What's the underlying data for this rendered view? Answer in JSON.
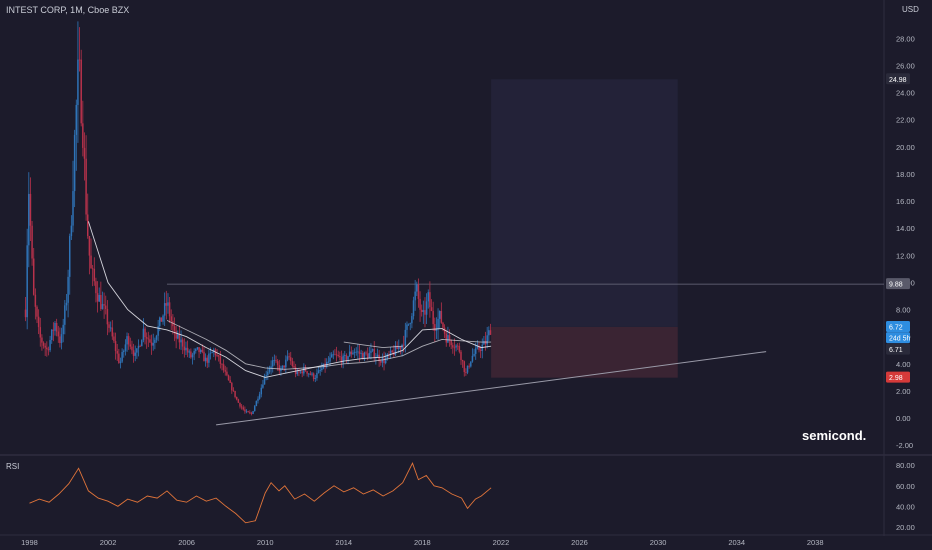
{
  "header": {
    "title": "INTEST CORP, 1M, Cboe BZX",
    "currency": "USD"
  },
  "watermark": "semicond.",
  "rsi_panel": {
    "label": "RSI"
  },
  "colors": {
    "background": "#1c1b2b",
    "up_candle": "#2f74b8",
    "down_candle": "#b8324b",
    "ma_line": "#e8e8ee",
    "rsi_line": "#e0743a",
    "trendline": "#9a9aa8",
    "projection_profit": "#232238",
    "projection_loss": "#3a2433",
    "tag_blue": "#2e8de0",
    "tag_red": "#d63a3a",
    "tag_gray": "#5a5a6a",
    "tag_dark": "#2a2a3a"
  },
  "chart_data": [
    {
      "type": "candlestick",
      "title": "INTEST CORP, 1M, Cboe BZX",
      "x_axis": {
        "type": "date",
        "range": [
          1996.5,
          2041.5
        ],
        "tick_labels": [
          "1998",
          "2002",
          "2006",
          "2010",
          "2014",
          "2018",
          "2022",
          "2026",
          "2030",
          "2034",
          "2038"
        ]
      },
      "y_axis": {
        "range": [
          -2.5,
          29.5
        ],
        "position": "right",
        "tick_labels": [
          "-2.00",
          "0.00",
          "2.00",
          "4.00",
          "6.00",
          "8.00",
          "10.00",
          "12.00",
          "14.00",
          "16.00",
          "18.00",
          "20.00",
          "22.00",
          "24.00",
          "26.00",
          "28.00"
        ]
      },
      "price_path": [
        {
          "x": 1997.8,
          "y": 8.0
        },
        {
          "x": 1997.95,
          "y": 17.5
        },
        {
          "x": 1998.2,
          "y": 9.0
        },
        {
          "x": 1998.5,
          "y": 6.0
        },
        {
          "x": 1998.9,
          "y": 5.0
        },
        {
          "x": 1999.3,
          "y": 7.0
        },
        {
          "x": 1999.6,
          "y": 5.5
        },
        {
          "x": 1999.9,
          "y": 9.0
        },
        {
          "x": 2000.1,
          "y": 14.0
        },
        {
          "x": 2000.3,
          "y": 20.5
        },
        {
          "x": 2000.5,
          "y": 26.0
        },
        {
          "x": 2000.7,
          "y": 22.0
        },
        {
          "x": 2000.9,
          "y": 15.0
        },
        {
          "x": 2001.1,
          "y": 11.0
        },
        {
          "x": 2001.5,
          "y": 9.0
        },
        {
          "x": 2001.9,
          "y": 7.5
        },
        {
          "x": 2002.2,
          "y": 6.0
        },
        {
          "x": 2002.6,
          "y": 4.0
        },
        {
          "x": 2003.0,
          "y": 6.0
        },
        {
          "x": 2003.4,
          "y": 4.5
        },
        {
          "x": 2003.8,
          "y": 6.5
        },
        {
          "x": 2004.2,
          "y": 5.5
        },
        {
          "x": 2004.6,
          "y": 6.8
        },
        {
          "x": 2005.0,
          "y": 8.5
        },
        {
          "x": 2005.4,
          "y": 6.0
        },
        {
          "x": 2005.8,
          "y": 5.5
        },
        {
          "x": 2006.2,
          "y": 4.5
        },
        {
          "x": 2006.6,
          "y": 5.0
        },
        {
          "x": 2007.0,
          "y": 4.2
        },
        {
          "x": 2007.4,
          "y": 5.0
        },
        {
          "x": 2007.8,
          "y": 3.8
        },
        {
          "x": 2008.2,
          "y": 2.5
        },
        {
          "x": 2008.6,
          "y": 1.2
        },
        {
          "x": 2009.0,
          "y": 0.4
        },
        {
          "x": 2009.3,
          "y": 0.3
        },
        {
          "x": 2009.7,
          "y": 1.8
        },
        {
          "x": 2010.0,
          "y": 3.2
        },
        {
          "x": 2010.4,
          "y": 4.2
        },
        {
          "x": 2010.8,
          "y": 3.5
        },
        {
          "x": 2011.2,
          "y": 4.5
        },
        {
          "x": 2011.6,
          "y": 3.2
        },
        {
          "x": 2012.0,
          "y": 3.6
        },
        {
          "x": 2012.5,
          "y": 3.0
        },
        {
          "x": 2013.0,
          "y": 3.8
        },
        {
          "x": 2013.5,
          "y": 4.6
        },
        {
          "x": 2014.0,
          "y": 4.3
        },
        {
          "x": 2014.5,
          "y": 5.0
        },
        {
          "x": 2015.0,
          "y": 4.6
        },
        {
          "x": 2015.5,
          "y": 4.8
        },
        {
          "x": 2016.0,
          "y": 4.2
        },
        {
          "x": 2016.5,
          "y": 4.8
        },
        {
          "x": 2017.0,
          "y": 5.5
        },
        {
          "x": 2017.4,
          "y": 7.5
        },
        {
          "x": 2017.7,
          "y": 9.5
        },
        {
          "x": 2018.0,
          "y": 7.2
        },
        {
          "x": 2018.3,
          "y": 8.8
        },
        {
          "x": 2018.6,
          "y": 6.8
        },
        {
          "x": 2018.9,
          "y": 7.5
        },
        {
          "x": 2019.2,
          "y": 6.0
        },
        {
          "x": 2019.6,
          "y": 5.5
        },
        {
          "x": 2019.9,
          "y": 5.0
        },
        {
          "x": 2020.2,
          "y": 3.2
        },
        {
          "x": 2020.5,
          "y": 4.5
        },
        {
          "x": 2020.8,
          "y": 5.0
        },
        {
          "x": 2021.2,
          "y": 5.5
        },
        {
          "x": 2021.5,
          "y": 6.72
        }
      ],
      "moving_averages": [
        {
          "name": "",
          "points": [
            {
              "x": 2001.0,
              "y": 14.5
            },
            {
              "x": 2002.0,
              "y": 10.0
            },
            {
              "x": 2003.0,
              "y": 8.0
            },
            {
              "x": 2004.0,
              "y": 6.8
            },
            {
              "x": 2005.0,
              "y": 6.5
            },
            {
              "x": 2006.0,
              "y": 6.0
            },
            {
              "x": 2007.0,
              "y": 5.2
            },
            {
              "x": 2008.0,
              "y": 4.5
            },
            {
              "x": 2009.0,
              "y": 3.5
            },
            {
              "x": 2010.0,
              "y": 3.0
            },
            {
              "x": 2011.0,
              "y": 3.3
            },
            {
              "x": 2012.0,
              "y": 3.6
            },
            {
              "x": 2013.0,
              "y": 3.9
            },
            {
              "x": 2014.0,
              "y": 4.2
            },
            {
              "x": 2015.0,
              "y": 4.4
            },
            {
              "x": 2016.0,
              "y": 4.5
            },
            {
              "x": 2017.0,
              "y": 5.0
            },
            {
              "x": 2018.0,
              "y": 6.5
            },
            {
              "x": 2019.0,
              "y": 6.6
            },
            {
              "x": 2020.0,
              "y": 5.8
            },
            {
              "x": 2021.0,
              "y": 5.2
            },
            {
              "x": 2021.5,
              "y": 5.3
            }
          ]
        },
        {
          "name": "",
          "points": [
            {
              "x": 2005.0,
              "y": 7.2
            },
            {
              "x": 2006.0,
              "y": 6.5
            },
            {
              "x": 2007.0,
              "y": 5.8
            },
            {
              "x": 2008.0,
              "y": 5.0
            },
            {
              "x": 2009.0,
              "y": 4.0
            },
            {
              "x": 2010.0,
              "y": 3.7
            },
            {
              "x": 2011.0,
              "y": 3.6
            },
            {
              "x": 2012.0,
              "y": 3.7
            },
            {
              "x": 2013.0,
              "y": 3.8
            },
            {
              "x": 2014.0,
              "y": 4.0
            },
            {
              "x": 2015.0,
              "y": 4.1
            },
            {
              "x": 2016.0,
              "y": 4.3
            },
            {
              "x": 2017.0,
              "y": 4.6
            },
            {
              "x": 2018.0,
              "y": 5.3
            },
            {
              "x": 2019.0,
              "y": 5.8
            },
            {
              "x": 2020.0,
              "y": 5.7
            },
            {
              "x": 2021.0,
              "y": 5.6
            },
            {
              "x": 2021.5,
              "y": 5.6
            }
          ]
        },
        {
          "name": "",
          "points": [
            {
              "x": 2014.0,
              "y": 5.6
            },
            {
              "x": 2015.0,
              "y": 5.4
            },
            {
              "x": 2016.0,
              "y": 5.2
            },
            {
              "x": 2017.0,
              "y": 5.3
            }
          ]
        }
      ],
      "trendline": {
        "from": {
          "x": 2007.5,
          "y": -0.5
        },
        "to": {
          "x": 2035.5,
          "y": 4.9
        }
      },
      "horizontal_level": {
        "y": 9.88,
        "from_x": 2005.0
      },
      "projection": {
        "x_range": [
          2021.5,
          2031.0
        ],
        "entry": 6.72,
        "target": 24.98,
        "stop": 2.98
      },
      "price_tags": [
        {
          "label": "24.98",
          "y": 24.98,
          "style": "dark"
        },
        {
          "label": "9.88",
          "y": 9.88,
          "style": "gray"
        },
        {
          "label": "6.72",
          "y": 6.72,
          "style": "blue"
        },
        {
          "label": "24d 5h",
          "y": 5.9,
          "style": "blue"
        },
        {
          "label": "6.71",
          "y": 5.05,
          "style": "dark"
        },
        {
          "label": "2.98",
          "y": 2.98,
          "style": "red"
        }
      ]
    },
    {
      "type": "line",
      "title": "RSI",
      "y_axis": {
        "range": [
          15,
          88
        ],
        "tick_labels": [
          "80.00",
          "60.00",
          "40.00",
          "20.00"
        ]
      },
      "series": [
        {
          "name": "",
          "points": [
            {
              "x": 1998.0,
              "y": 43
            },
            {
              "x": 1998.5,
              "y": 47
            },
            {
              "x": 1999.0,
              "y": 44
            },
            {
              "x": 1999.5,
              "y": 52
            },
            {
              "x": 2000.0,
              "y": 62
            },
            {
              "x": 2000.5,
              "y": 77
            },
            {
              "x": 2001.0,
              "y": 55
            },
            {
              "x": 2001.5,
              "y": 48
            },
            {
              "x": 2002.0,
              "y": 45
            },
            {
              "x": 2002.5,
              "y": 40
            },
            {
              "x": 2003.0,
              "y": 47
            },
            {
              "x": 2003.5,
              "y": 44
            },
            {
              "x": 2004.0,
              "y": 50
            },
            {
              "x": 2004.5,
              "y": 48
            },
            {
              "x": 2005.0,
              "y": 55
            },
            {
              "x": 2005.5,
              "y": 46
            },
            {
              "x": 2006.0,
              "y": 44
            },
            {
              "x": 2006.5,
              "y": 50
            },
            {
              "x": 2007.0,
              "y": 45
            },
            {
              "x": 2007.5,
              "y": 48
            },
            {
              "x": 2008.0,
              "y": 40
            },
            {
              "x": 2008.5,
              "y": 33
            },
            {
              "x": 2009.0,
              "y": 24
            },
            {
              "x": 2009.5,
              "y": 26
            },
            {
              "x": 2010.0,
              "y": 53
            },
            {
              "x": 2010.3,
              "y": 63
            },
            {
              "x": 2010.7,
              "y": 55
            },
            {
              "x": 2011.0,
              "y": 60
            },
            {
              "x": 2011.5,
              "y": 47
            },
            {
              "x": 2012.0,
              "y": 52
            },
            {
              "x": 2012.5,
              "y": 45
            },
            {
              "x": 2013.0,
              "y": 53
            },
            {
              "x": 2013.5,
              "y": 60
            },
            {
              "x": 2014.0,
              "y": 54
            },
            {
              "x": 2014.5,
              "y": 58
            },
            {
              "x": 2015.0,
              "y": 52
            },
            {
              "x": 2015.5,
              "y": 56
            },
            {
              "x": 2016.0,
              "y": 50
            },
            {
              "x": 2016.5,
              "y": 55
            },
            {
              "x": 2017.0,
              "y": 63
            },
            {
              "x": 2017.5,
              "y": 82
            },
            {
              "x": 2017.8,
              "y": 66
            },
            {
              "x": 2018.2,
              "y": 70
            },
            {
              "x": 2018.6,
              "y": 60
            },
            {
              "x": 2019.0,
              "y": 58
            },
            {
              "x": 2019.5,
              "y": 52
            },
            {
              "x": 2020.0,
              "y": 48
            },
            {
              "x": 2020.3,
              "y": 38
            },
            {
              "x": 2020.7,
              "y": 47
            },
            {
              "x": 2021.0,
              "y": 50
            },
            {
              "x": 2021.5,
              "y": 58
            }
          ]
        }
      ]
    }
  ]
}
